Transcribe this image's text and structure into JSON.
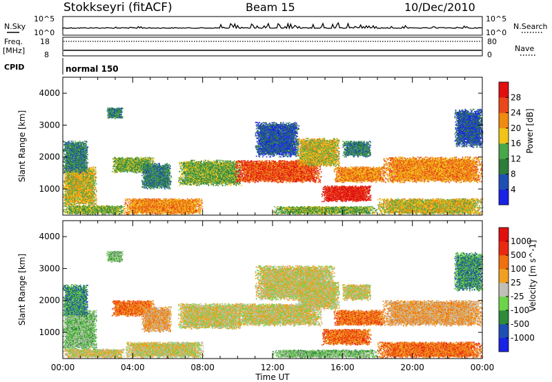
{
  "header": {
    "station": "Stokkseyri (fitACF)",
    "beam": "Beam 15",
    "date": "10/Dec/2010"
  },
  "panels": {
    "nsky": {
      "label": "N.Sky",
      "tick_top": "10^5",
      "tick_bottom": "10^0"
    },
    "nsearch": {
      "label": "N.Search",
      "tick_top": "10^5",
      "tick_bottom": "10^0"
    },
    "freq": {
      "label_line1": "Freq.",
      "label_line2": "[MHz]",
      "tick_top": "18",
      "tick_bottom": "8"
    },
    "nave": {
      "label": "Nave",
      "tick_top": "80",
      "tick_bottom": "0"
    },
    "cpid": {
      "label": "CPID",
      "value": "normal 150"
    }
  },
  "chart_data": [
    {
      "type": "heatmap",
      "title": "",
      "xlabel": "Time UT",
      "ylabel": "Slant Range [km]",
      "xlim": [
        "00:00",
        "24:00"
      ],
      "x_ticks": [
        "00:00",
        "04:00",
        "08:00",
        "12:00",
        "16:00",
        "20:00",
        "00:00"
      ],
      "ylim": [
        180,
        4500
      ],
      "y_ticks": [
        "1000",
        "2000",
        "3000",
        "4000"
      ],
      "colorbar": {
        "label": "Power [dB]",
        "ticks": [
          "4",
          "8",
          "12",
          "16",
          "20",
          "24",
          "28"
        ],
        "colors": [
          "#1a22e6",
          "#1f4fb4",
          "#2e7d3a",
          "#4aa64a",
          "#f0c418",
          "#f08a10",
          "#e8481a",
          "#e01010"
        ]
      },
      "regions": [
        {
          "t0": 0.0,
          "t1": 1.9,
          "r0": 450,
          "r1": 1700,
          "level": 4
        },
        {
          "t0": 0.0,
          "t1": 1.4,
          "r0": 1500,
          "r1": 2500,
          "level": 2
        },
        {
          "t0": 0.0,
          "t1": 3.5,
          "r0": 200,
          "r1": 480,
          "level": 3
        },
        {
          "t0": 2.5,
          "t1": 3.4,
          "r0": 3200,
          "r1": 3550,
          "level": 2
        },
        {
          "t0": 2.8,
          "t1": 5.2,
          "r0": 1500,
          "r1": 2000,
          "level": 3
        },
        {
          "t0": 3.5,
          "t1": 8.0,
          "r0": 200,
          "r1": 700,
          "level": 5
        },
        {
          "t0": 4.5,
          "t1": 6.2,
          "r0": 1000,
          "r1": 1800,
          "level": 2
        },
        {
          "t0": 6.6,
          "t1": 10.2,
          "r0": 1100,
          "r1": 1900,
          "level": 3
        },
        {
          "t0": 9.8,
          "t1": 14.8,
          "r0": 1200,
          "r1": 1900,
          "level": 6
        },
        {
          "t0": 11.0,
          "t1": 13.5,
          "r0": 2000,
          "r1": 3100,
          "level": 1
        },
        {
          "t0": 13.4,
          "t1": 15.8,
          "r0": 1700,
          "r1": 2600,
          "level": 4
        },
        {
          "t0": 14.8,
          "t1": 17.6,
          "r0": 600,
          "r1": 1100,
          "level": 7
        },
        {
          "t0": 15.5,
          "t1": 18.4,
          "r0": 1200,
          "r1": 1700,
          "level": 5
        },
        {
          "t0": 16.0,
          "t1": 17.6,
          "r0": 2000,
          "r1": 2500,
          "level": 2
        },
        {
          "t0": 18.3,
          "t1": 24.0,
          "r0": 1200,
          "r1": 2000,
          "level": 5
        },
        {
          "t0": 18.0,
          "t1": 24.0,
          "r0": 200,
          "r1": 700,
          "level": 4
        },
        {
          "t0": 12.0,
          "t1": 18.0,
          "r0": 200,
          "r1": 450,
          "level": 3
        },
        {
          "t0": 22.4,
          "t1": 24.0,
          "r0": 2300,
          "r1": 3500,
          "level": 1
        }
      ]
    },
    {
      "type": "heatmap",
      "title": "",
      "xlabel": "Time UT",
      "ylabel": "Slant Range [km]",
      "xlim": [
        "00:00",
        "24:00"
      ],
      "x_ticks": [
        "00:00",
        "04:00",
        "08:00",
        "12:00",
        "16:00",
        "20:00",
        "00:00"
      ],
      "ylim": [
        180,
        4500
      ],
      "y_ticks": [
        "1000",
        "2000",
        "3000",
        "4000"
      ],
      "colorbar": {
        "label": "Velocity [m s^-1]",
        "ticks": [
          "1000",
          "500",
          "100",
          "25",
          "-25",
          "-100",
          "-500",
          "-1000"
        ],
        "colors": [
          "#1a22e6",
          "#1f4fb4",
          "#2e8b3a",
          "#6dd44a",
          "#c0c0b8",
          "#f0a020",
          "#f07010",
          "#e82a10",
          "#e01010"
        ]
      },
      "regions": [
        {
          "t0": 0.0,
          "t1": 1.9,
          "r0": 450,
          "r1": 1700,
          "level": 3
        },
        {
          "t0": 0.0,
          "t1": 1.4,
          "r0": 1500,
          "r1": 2500,
          "level": 2
        },
        {
          "t0": 0.0,
          "t1": 3.5,
          "r0": 200,
          "r1": 480,
          "level": 4
        },
        {
          "t0": 2.5,
          "t1": 3.4,
          "r0": 3200,
          "r1": 3550,
          "level": 3
        },
        {
          "t0": 2.8,
          "t1": 5.2,
          "r0": 1500,
          "r1": 2000,
          "level": 6
        },
        {
          "t0": 3.5,
          "t1": 8.0,
          "r0": 200,
          "r1": 700,
          "level": 4
        },
        {
          "t0": 4.5,
          "t1": 6.2,
          "r0": 1000,
          "r1": 1800,
          "level": 5
        },
        {
          "t0": 6.6,
          "t1": 10.2,
          "r0": 1100,
          "r1": 1900,
          "level": 4
        },
        {
          "t0": 9.8,
          "t1": 14.8,
          "r0": 1200,
          "r1": 1900,
          "level": 4
        },
        {
          "t0": 11.0,
          "t1": 15.5,
          "r0": 2000,
          "r1": 3100,
          "level": 4
        },
        {
          "t0": 13.4,
          "t1": 15.8,
          "r0": 1700,
          "r1": 2600,
          "level": 4
        },
        {
          "t0": 14.8,
          "t1": 17.6,
          "r0": 600,
          "r1": 1100,
          "level": 6
        },
        {
          "t0": 15.5,
          "t1": 18.4,
          "r0": 1200,
          "r1": 1700,
          "level": 6
        },
        {
          "t0": 16.0,
          "t1": 17.6,
          "r0": 2000,
          "r1": 2500,
          "level": 4
        },
        {
          "t0": 18.3,
          "t1": 24.0,
          "r0": 1200,
          "r1": 2000,
          "level": 5
        },
        {
          "t0": 18.0,
          "t1": 24.0,
          "r0": 200,
          "r1": 700,
          "level": 6
        },
        {
          "t0": 12.0,
          "t1": 18.0,
          "r0": 200,
          "r1": 450,
          "level": 3
        },
        {
          "t0": 22.4,
          "t1": 24.0,
          "r0": 2300,
          "r1": 3500,
          "level": 2
        }
      ]
    }
  ]
}
